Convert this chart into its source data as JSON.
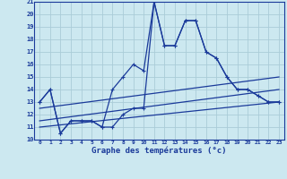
{
  "title": "Graphe des températures (°c)",
  "bg_color": "#cce8f0",
  "grid_color": "#aaccd8",
  "line_color": "#1a3a9a",
  "xlim": [
    -0.5,
    23.5
  ],
  "ylim": [
    10,
    21
  ],
  "xtick_labels": [
    "0",
    "1",
    "2",
    "3",
    "4",
    "5",
    "6",
    "7",
    "8",
    "9",
    "10",
    "11",
    "12",
    "13",
    "14",
    "15",
    "16",
    "17",
    "18",
    "19",
    "20",
    "21",
    "22",
    "23"
  ],
  "xtick_vals": [
    0,
    1,
    2,
    3,
    4,
    5,
    6,
    7,
    8,
    9,
    10,
    11,
    12,
    13,
    14,
    15,
    16,
    17,
    18,
    19,
    20,
    21,
    22,
    23
  ],
  "ytick_vals": [
    10,
    11,
    12,
    13,
    14,
    15,
    16,
    17,
    18,
    19,
    20,
    21
  ],
  "series": [
    {
      "x": [
        0,
        1,
        2,
        3,
        4,
        5,
        6,
        7,
        8,
        9,
        10,
        11,
        12,
        13,
        14,
        15,
        16,
        17,
        18,
        19,
        20,
        21,
        22,
        23
      ],
      "y": [
        13,
        14,
        10.5,
        11.5,
        11.5,
        11.5,
        11.0,
        14.0,
        15.0,
        16.0,
        15.5,
        21.0,
        17.5,
        17.5,
        19.5,
        19.5,
        17.0,
        16.5,
        15.0,
        14.0,
        14.0,
        13.5,
        13.0,
        13.0
      ],
      "marker": "+"
    },
    {
      "x": [
        0,
        1,
        2,
        3,
        4,
        5,
        6,
        7,
        8,
        9,
        10,
        11,
        12,
        13,
        14,
        15,
        16,
        17,
        18,
        19,
        20,
        21,
        22,
        23
      ],
      "y": [
        13,
        14,
        10.5,
        11.5,
        11.5,
        11.5,
        11.0,
        11.0,
        12.0,
        12.5,
        12.5,
        21.0,
        17.5,
        17.5,
        19.5,
        19.5,
        17.0,
        16.5,
        15.0,
        14.0,
        14.0,
        13.5,
        13.0,
        13.0
      ],
      "marker": "+"
    },
    {
      "x": [
        0,
        23
      ],
      "y": [
        11.0,
        13.0
      ],
      "marker": null
    },
    {
      "x": [
        0,
        23
      ],
      "y": [
        11.5,
        14.0
      ],
      "marker": null
    },
    {
      "x": [
        0,
        23
      ],
      "y": [
        12.5,
        15.0
      ],
      "marker": null
    }
  ]
}
